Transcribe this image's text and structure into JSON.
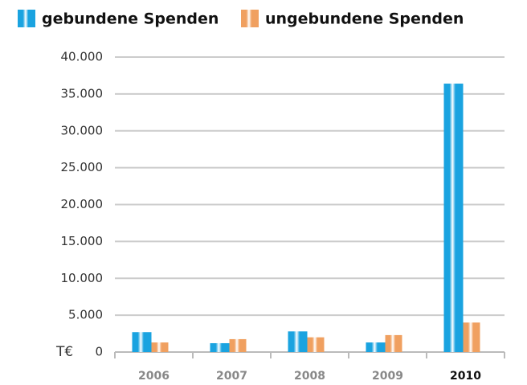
{
  "chart_data": {
    "type": "bar",
    "y_unit": "T€",
    "categories": [
      "2006",
      "2007",
      "2008",
      "2009",
      "2010"
    ],
    "series": [
      {
        "name": "gebundene Spenden",
        "color": "#1aa3e0",
        "values": [
          2700,
          1200,
          2800,
          1300,
          36400
        ]
      },
      {
        "name": "ungebundene Spenden",
        "color": "#f0a060",
        "values": [
          1300,
          1750,
          2000,
          2300,
          4000
        ]
      }
    ],
    "ylim": [
      0,
      40000
    ],
    "yticks": [
      0,
      {
        "value": 5000,
        "label": "5.000"
      },
      {
        "value": 10000,
        "label": "10.000"
      },
      {
        "value": 15000,
        "label": "15.000"
      },
      {
        "value": 20000,
        "label": "20.000"
      },
      {
        "value": 25000,
        "label": "25.000"
      },
      {
        "value": 30000,
        "label": "30.000"
      },
      {
        "value": 35000,
        "label": "35.000"
      },
      {
        "value": 40000,
        "label": "40.000"
      }
    ],
    "grid": true
  }
}
